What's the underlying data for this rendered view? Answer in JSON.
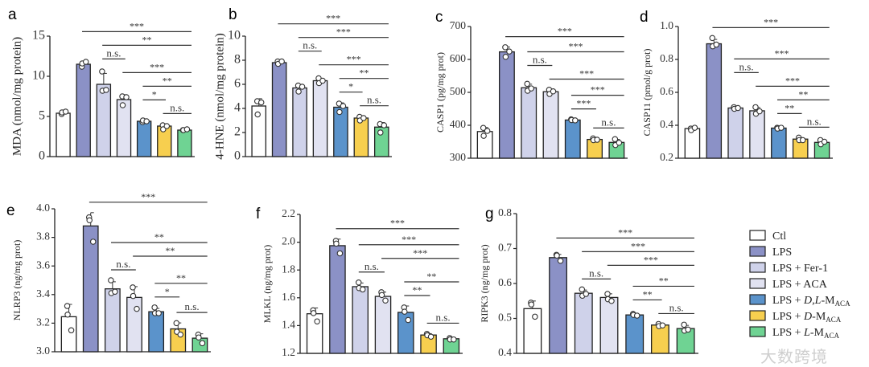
{
  "watermark": "大数跨境",
  "groups": [
    "Ctl",
    "LPS",
    "LPS + Fer-1",
    "LPS + ACA",
    "LPS + D,L-MACA",
    "LPS + D-MACA",
    "LPS + L-MACA"
  ],
  "colors": [
    "#ffffff",
    "#8b91c6",
    "#cfd2ea",
    "#e1e2f1",
    "#5b93cb",
    "#f7cf4f",
    "#6fd393"
  ],
  "legend": [
    {
      "pre": "Ctl",
      "ital": "",
      "mid": "",
      "sub": ""
    },
    {
      "pre": "LPS",
      "ital": "",
      "mid": "",
      "sub": ""
    },
    {
      "pre": "LPS + Fer-1",
      "ital": "",
      "mid": "",
      "sub": ""
    },
    {
      "pre": "LPS + ACA",
      "ital": "",
      "mid": "",
      "sub": ""
    },
    {
      "pre": "LPS + ",
      "ital": "D,L",
      "mid": "-M",
      "sub": "ACA"
    },
    {
      "pre": "LPS + ",
      "ital": "D",
      "mid": "-M",
      "sub": "ACA"
    },
    {
      "pre": "LPS + ",
      "ital": "L",
      "mid": "-M",
      "sub": "ACA"
    }
  ],
  "chart_data": [
    {
      "panel": "a",
      "type": "bar",
      "ylabel": "MDA (nmol/mg protein)",
      "ylim": [
        0,
        15
      ],
      "yticks": [
        "0",
        "5",
        "10",
        "15"
      ],
      "values": [
        5.4,
        11.5,
        9.0,
        7.1,
        4.4,
        3.8,
        3.3
      ],
      "points": [
        [
          5.3,
          5.5,
          5.6
        ],
        [
          11.2,
          11.6,
          11.8
        ],
        [
          10.6,
          8.2,
          8.3
        ],
        [
          7.5,
          6.4,
          7.4
        ],
        [
          4.3,
          4.5,
          4.4
        ],
        [
          3.9,
          3.4,
          3.8
        ],
        [
          3.3,
          3.3,
          3.4
        ]
      ],
      "comparisons": [
        [
          1,
          6,
          "***"
        ],
        [
          2,
          6,
          "**"
        ],
        [
          2,
          3,
          "n.s."
        ],
        [
          3,
          6,
          "***"
        ],
        [
          4,
          6,
          "**"
        ],
        [
          4,
          5,
          "*"
        ],
        [
          5,
          6,
          "n.s."
        ]
      ]
    },
    {
      "panel": "b",
      "type": "bar",
      "ylabel": "4-HNE (nmol/mg protein)",
      "ylim": [
        0,
        10
      ],
      "yticks": [
        "0",
        "2",
        "4",
        "6",
        "8",
        "10"
      ],
      "values": [
        4.2,
        7.8,
        5.7,
        6.3,
        4.1,
        3.2,
        2.45
      ],
      "points": [
        [
          4.6,
          3.5,
          4.5
        ],
        [
          7.9,
          7.7,
          7.9
        ],
        [
          5.9,
          5.4,
          5.8
        ],
        [
          6.5,
          6.1,
          6.3
        ],
        [
          4.4,
          3.7,
          4.2
        ],
        [
          3.3,
          3.0,
          3.2
        ],
        [
          2.7,
          2.0,
          2.6
        ]
      ],
      "comparisons": [
        [
          1,
          6,
          "***"
        ],
        [
          2,
          6,
          "***"
        ],
        [
          2,
          3,
          "n.s."
        ],
        [
          3,
          6,
          "***"
        ],
        [
          4,
          6,
          "**"
        ],
        [
          4,
          5,
          "*"
        ],
        [
          5,
          6,
          "n.s."
        ]
      ]
    },
    {
      "panel": "c",
      "type": "bar",
      "ylabel": "CASP1 (pg/mg prot)",
      "ylim": [
        300,
        700
      ],
      "yticks": [
        "300",
        "400",
        "500",
        "600",
        "700"
      ],
      "values": [
        381,
        623,
        514,
        502,
        416,
        357,
        348
      ],
      "points": [
        [
          392,
          368,
          383
        ],
        [
          637,
          608,
          624
        ],
        [
          526,
          505,
          512
        ],
        [
          508,
          495,
          503
        ],
        [
          418,
          416,
          415
        ],
        [
          360,
          355,
          356
        ],
        [
          358,
          340,
          347
        ]
      ],
      "comparisons": [
        [
          1,
          6,
          "***"
        ],
        [
          2,
          6,
          "***"
        ],
        [
          2,
          3,
          "n.s."
        ],
        [
          3,
          6,
          "***"
        ],
        [
          4,
          6,
          "***"
        ],
        [
          4,
          5,
          "***"
        ],
        [
          5,
          6,
          "n.s."
        ]
      ]
    },
    {
      "panel": "d",
      "type": "bar",
      "ylabel": "CASP11 (pmol/g prot)",
      "ylim": [
        0.2,
        1.0
      ],
      "yticks": [
        "0.2",
        "0.4",
        "0.6",
        "0.8",
        "1.0"
      ],
      "values": [
        0.38,
        0.895,
        0.505,
        0.488,
        0.383,
        0.316,
        0.296
      ],
      "points": [
        [
          0.38,
          0.37,
          0.385
        ],
        [
          0.93,
          0.88,
          0.89
        ],
        [
          0.51,
          0.5,
          0.505
        ],
        [
          0.51,
          0.47,
          0.485
        ],
        [
          0.385,
          0.38,
          0.385
        ],
        [
          0.325,
          0.31,
          0.31
        ],
        [
          0.31,
          0.285,
          0.3
        ]
      ],
      "comparisons": [
        [
          1,
          6,
          "***"
        ],
        [
          2,
          6,
          "***"
        ],
        [
          2,
          3,
          "n.s."
        ],
        [
          3,
          6,
          "***"
        ],
        [
          4,
          6,
          "**"
        ],
        [
          4,
          5,
          "**"
        ],
        [
          5,
          6,
          "n.s."
        ]
      ]
    },
    {
      "panel": "e",
      "type": "bar",
      "ylabel": "NLRP3 (ng/mg prot)",
      "ylim": [
        3.0,
        4.0
      ],
      "yticks": [
        "3.0",
        "3.2",
        "3.4",
        "3.6",
        "3.8",
        "4.0"
      ],
      "values": [
        3.245,
        3.88,
        3.44,
        3.38,
        3.28,
        3.16,
        3.095
      ],
      "points": [
        [
          3.32,
          3.26,
          3.15
        ],
        [
          3.94,
          3.92,
          3.77
        ],
        [
          3.5,
          3.41,
          3.42
        ],
        [
          3.45,
          3.39,
          3.3
        ],
        [
          3.31,
          3.27,
          3.27
        ],
        [
          3.2,
          3.14,
          3.12
        ],
        [
          3.12,
          3.1,
          3.06
        ]
      ],
      "comparisons": [
        [
          1,
          6,
          "***"
        ],
        [
          2,
          6,
          "**"
        ],
        [
          3,
          6,
          "**"
        ],
        [
          2,
          3,
          "n.s."
        ],
        [
          4,
          6,
          "**"
        ],
        [
          4,
          5,
          "*"
        ],
        [
          5,
          6,
          "n.s."
        ]
      ]
    },
    {
      "panel": "f",
      "type": "bar",
      "ylabel": "MLKL (ng/mg prot)",
      "ylim": [
        1.2,
        2.2
      ],
      "yticks": [
        "1.2",
        "1.4",
        "1.6",
        "1.8",
        "2.0",
        "2.2"
      ],
      "values": [
        1.485,
        1.975,
        1.68,
        1.61,
        1.495,
        1.332,
        1.305
      ],
      "points": [
        [
          1.51,
          1.49,
          1.43
        ],
        [
          2.01,
          1.99,
          1.92
        ],
        [
          1.71,
          1.67,
          1.66
        ],
        [
          1.64,
          1.62,
          1.58
        ],
        [
          1.53,
          1.5,
          1.44
        ],
        [
          1.34,
          1.33,
          1.32
        ],
        [
          1.31,
          1.3,
          1.3
        ]
      ],
      "comparisons": [
        [
          1,
          6,
          "***"
        ],
        [
          2,
          6,
          "***"
        ],
        [
          3,
          6,
          "***"
        ],
        [
          2,
          3,
          "n.s."
        ],
        [
          4,
          6,
          "**"
        ],
        [
          4,
          5,
          "**"
        ],
        [
          5,
          6,
          "n.s."
        ]
      ]
    },
    {
      "panel": "g",
      "type": "bar",
      "ylabel": "RIPK3 (ng/mg prot)",
      "ylim": [
        0.4,
        0.8
      ],
      "yticks": [
        "0.4",
        "0.5",
        "0.6",
        "0.7",
        "0.8"
      ],
      "values": [
        0.528,
        0.674,
        0.572,
        0.56,
        0.51,
        0.481,
        0.471
      ],
      "points": [
        [
          0.545,
          0.54,
          0.505
        ],
        [
          0.682,
          0.68,
          0.665
        ],
        [
          0.583,
          0.565,
          0.57
        ],
        [
          0.57,
          0.555,
          0.55
        ],
        [
          0.513,
          0.51,
          0.508
        ],
        [
          0.484,
          0.478,
          0.48
        ],
        [
          0.482,
          0.465,
          0.468
        ]
      ],
      "comparisons": [
        [
          1,
          6,
          "***"
        ],
        [
          2,
          6,
          "***"
        ],
        [
          3,
          6,
          "***"
        ],
        [
          2,
          3,
          "n.s."
        ],
        [
          4,
          6,
          "**"
        ],
        [
          4,
          5,
          "**"
        ],
        [
          5,
          6,
          "n.s."
        ]
      ]
    }
  ]
}
